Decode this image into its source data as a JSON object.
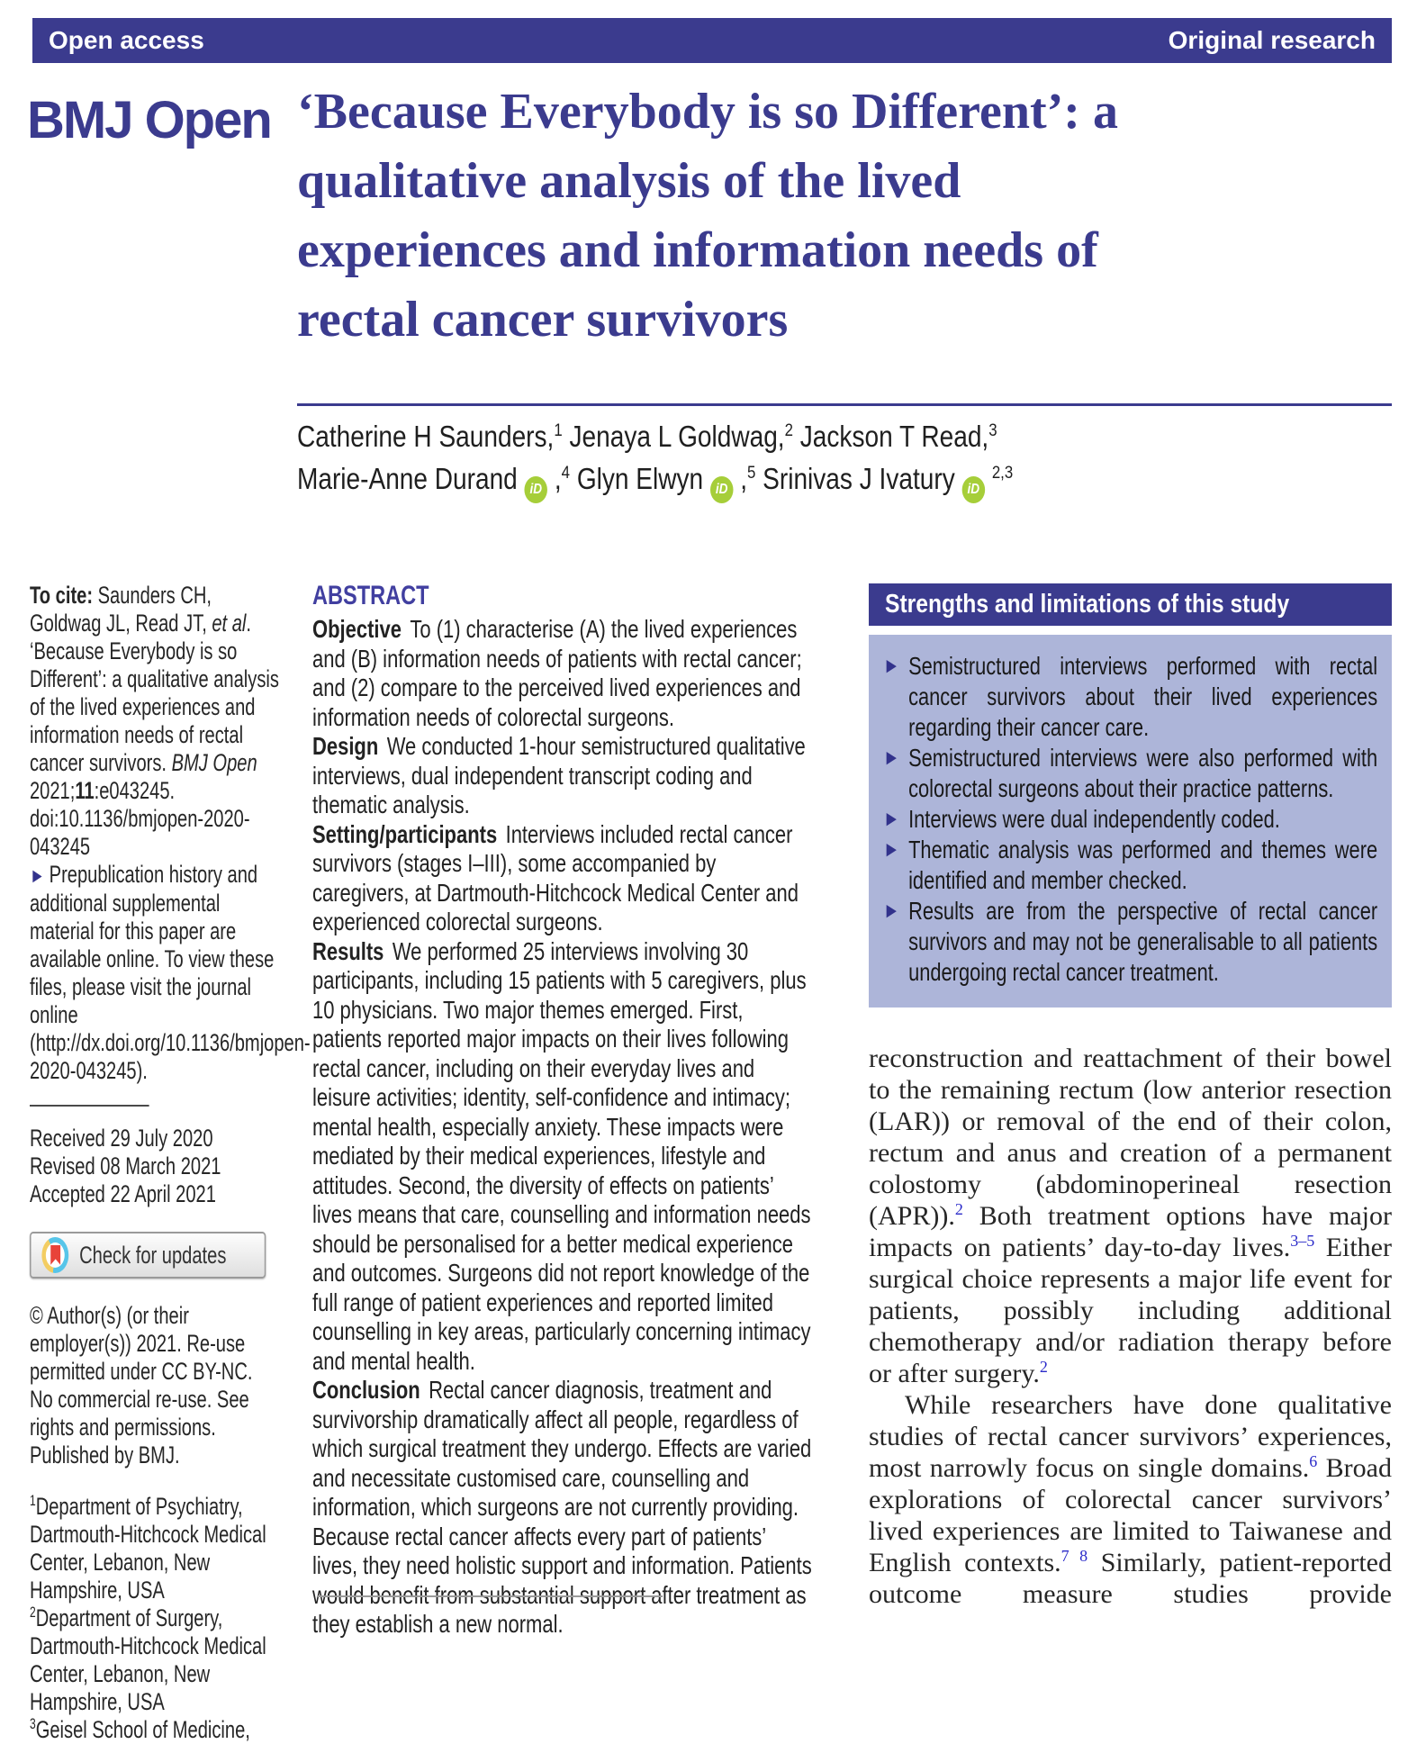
{
  "colors": {
    "brand_blue": "#3b3b8e",
    "strengths_body": "#adb5d9",
    "orcid_green": "#a6ce39",
    "reference_link_blue": "#2a2ac9",
    "crossmark_red": "#e8433a",
    "crossmark_ring_blue": "#57c5e9",
    "crossmark_ring_yellow": "#f3cd62",
    "text": "#262626"
  },
  "topbar": {
    "left": "Open access",
    "right": "Original research"
  },
  "masthead": {
    "journal": "BMJ Open",
    "title_lines": [
      "‘Because Everybody is so Different’: a",
      "qualitative analysis of the lived",
      "experiences and information needs of",
      "rectal cancer survivors"
    ]
  },
  "authors": {
    "line1": [
      {
        "t": "Catherine H Saunders,"
      },
      {
        "s": "sup",
        "t": "1"
      },
      {
        "t": " Jenaya L Goldwag,"
      },
      {
        "s": "sup",
        "t": "2"
      },
      {
        "t": " Jackson T Read,"
      },
      {
        "s": "sup",
        "t": "3"
      }
    ],
    "line2": [
      {
        "t": "Marie-Anne Durand  "
      },
      {
        "s": "orcid",
        "t": "iD"
      },
      {
        "t": " ,"
      },
      {
        "s": "sup",
        "t": "4"
      },
      {
        "t": " Glyn Elwyn  "
      },
      {
        "s": "orcid",
        "t": "iD"
      },
      {
        "t": " ,"
      },
      {
        "s": "sup",
        "t": "5"
      },
      {
        "t": " Srinivas J Ivatury  "
      },
      {
        "s": "orcid",
        "t": "iD"
      },
      {
        "t": " "
      },
      {
        "s": "sup",
        "t": "2,3"
      }
    ]
  },
  "left": {
    "to_cite": [
      {
        "s": "b",
        "t": "To cite: "
      },
      {
        "t": "Saunders CH, Goldwag JL, Read JT, "
      },
      {
        "s": "i",
        "t": "et al"
      },
      {
        "t": ". ‘Because Everybody is so Different’: a qualitative analysis of the lived experiences and information needs of rectal cancer survivors. "
      },
      {
        "s": "i",
        "t": "BMJ Open"
      },
      {
        "t": " 2021;"
      },
      {
        "s": "b",
        "t": "11"
      },
      {
        "t": ":e043245. doi:10.1136/bmjopen-2020-043245"
      }
    ],
    "prepub": [
      {
        "s": "arrow",
        "t": "► "
      },
      {
        "t": "Prepublication history and additional supplemental material for this paper are available online. To view these files, please visit the journal online (http://dx.doi.org/10.1136/bmjopen-2020-043245)."
      }
    ],
    "dates": [
      "Received 29 July 2020",
      "Revised 08 March 2021",
      "Accepted 22 April 2021"
    ],
    "check_updates": "Check for updates",
    "copyright": "© Author(s) (or their employer(s)) 2021. Re-use permitted under CC BY-NC. No commercial re-use. See rights and permissions. Published by BMJ.",
    "affiliations": [
      [
        {
          "s": "sup",
          "t": "1"
        },
        {
          "t": "Department of Psychiatry, Dartmouth-Hitchcock Medical Center, Lebanon, New Hampshire, USA"
        }
      ],
      [
        {
          "s": "sup",
          "t": "2"
        },
        {
          "t": "Department of Surgery, Dartmouth-Hitchcock Medical Center, Lebanon, New Hampshire, USA"
        }
      ],
      [
        {
          "s": "sup",
          "t": "3"
        },
        {
          "t": "Geisel School of Medicine,"
        }
      ]
    ]
  },
  "abstract": {
    "heading": "ABSTRACT",
    "sections": [
      {
        "label": "Objective",
        "text": "To (1) characterise (A) the lived experiences and (B) information needs of patients with rectal cancer; and (2) compare to the perceived lived experiences and information needs of colorectal surgeons."
      },
      {
        "label": "Design",
        "text": "We conducted 1-hour semistructured qualitative interviews, dual independent transcript coding and thematic analysis."
      },
      {
        "label": "Setting/participants",
        "text": "Interviews included rectal cancer survivors (stages I–III), some accompanied by caregivers, at Dartmouth-Hitchcock Medical Center and experienced colorectal surgeons."
      },
      {
        "label": "Results",
        "text": "We performed 25 interviews involving 30 participants, including 15 patients with 5 caregivers, plus 10 physicians. Two major themes emerged. First, patients reported major impacts on their lives following rectal cancer, including on their everyday lives and leisure activities; identity, self-confidence and intimacy; mental health, especially anxiety. These impacts were mediated by their medical experiences, lifestyle and attitudes. Second, the diversity of effects on patients’ lives means that care, counselling and information needs should be personalised for a better medical experience and outcomes. Surgeons did not report knowledge of the full range of patient experiences and reported limited counselling in key areas, particularly concerning intimacy and mental health."
      },
      {
        "label": "Conclusion",
        "text": "Rectal cancer diagnosis, treatment and survivorship dramatically affect all people, regardless of which surgical treatment they undergo. Effects are varied and necessitate customised care, counselling and information, which surgeons are not currently providing. Because rectal cancer affects every part of patients’ lives, they need holistic support and information. Patients would benefit from substantial support after treatment as they establish a new normal."
      }
    ]
  },
  "strengths": {
    "title": "Strengths and limitations of this study",
    "bullet_glyph": "►",
    "items": [
      "Semistructured interviews performed with rectal cancer survivors about their lived experiences regarding their cancer care.",
      "Semistructured interviews were also performed with colorectal surgeons about their practice patterns.",
      "Interviews were dual independently coded.",
      "Thematic analysis was performed and themes were identified and member checked.",
      "Results are from the perspective of rectal cancer survivors and may not be generalisable to all patients undergoing rectal cancer treatment."
    ]
  },
  "body": {
    "p1": [
      {
        "t": "reconstruction and reattachment of their bowel to the remaining rectum (low anterior resection (LAR)) or removal of the end of their colon, rectum and anus and creation of a permanent colostomy (abdominoperineal resection (APR))."
      },
      {
        "s": "supb",
        "t": "2"
      },
      {
        "t": " Both treatment options have major impacts on patients’ day-to-day lives."
      },
      {
        "s": "supb",
        "t": "3–5"
      },
      {
        "t": " Either surgical choice represents a major life event for patients, possibly including additional chemotherapy and/or radiation therapy before or after surgery."
      },
      {
        "s": "supb",
        "t": "2"
      }
    ],
    "p2": [
      {
        "t": "While researchers have done qualitative studies of rectal cancer survivors’ experiences, most narrowly focus on single domains."
      },
      {
        "s": "supb",
        "t": "6"
      },
      {
        "t": " Broad explorations of colorectal cancer survivors’ lived experiences are limited to Taiwanese and English contexts."
      },
      {
        "s": "supb",
        "t": "7 8"
      },
      {
        "t": " Similarly, patient-reported outcome measure studies provide"
      }
    ]
  }
}
